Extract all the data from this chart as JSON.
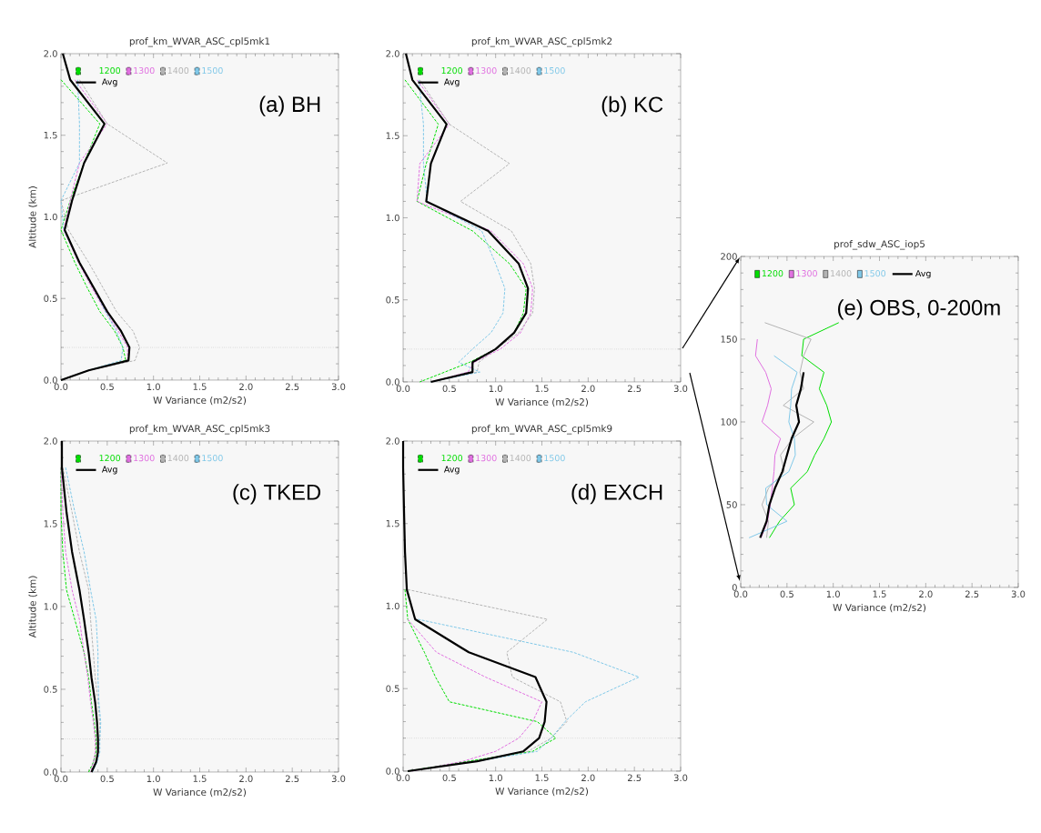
{
  "chart_data": [
    {
      "type": "line",
      "title": "prof_km_WVAR_ASC_cpl5mk1",
      "xlabel": "W Variance (m2/s2)",
      "ylabel": "Altitude (km)",
      "xlim": [
        0,
        3
      ],
      "ylim": [
        0,
        2
      ],
      "xticks": [
        {
          "value": 0,
          "label": "0.0"
        },
        {
          "value": 0.5,
          "label": "0.5"
        },
        {
          "value": 1,
          "label": "1.0"
        },
        {
          "value": 1.5,
          "label": "1.5"
        },
        {
          "value": 2,
          "label": "2.0"
        },
        {
          "value": 2.5,
          "label": "2.5"
        },
        {
          "value": 3,
          "label": "3.0"
        }
      ],
      "yticks": [
        {
          "value": 0,
          "label": "0.0"
        },
        {
          "value": 0.5,
          "label": "0.5"
        },
        {
          "value": 1,
          "label": "1.0"
        },
        {
          "value": 1.5,
          "label": "1.5"
        },
        {
          "value": 2,
          "label": "2.0"
        }
      ],
      "legend": "top left",
      "annotations": [
        "(a) BH"
      ],
      "ref_lines": [
        {
          "axis": "y",
          "value": 0.2,
          "line_style": "dotted"
        }
      ],
      "series": [
        {
          "name": "1200",
          "color": "#00dd00",
          "line_style": "dashed",
          "x": [
            0,
            0.3,
            0.7,
            0.67,
            0.58,
            0.42,
            0.28,
            0.15,
            0.0,
            0.1,
            0.25,
            0.42,
            0.0
          ],
          "values": [
            0,
            0.06,
            0.12,
            0.2,
            0.3,
            0.42,
            0.57,
            0.72,
            0.92,
            1.1,
            1.33,
            1.57,
            1.84
          ]
        },
        {
          "name": "1300",
          "color": "#e070e0",
          "line_style": "dashed",
          "x": [
            0,
            0.3,
            0.72,
            0.72,
            0.62,
            0.48,
            0.33,
            0.19,
            0.03,
            0.1,
            0.2,
            0.5,
            0.15
          ],
          "values": [
            0,
            0.06,
            0.12,
            0.2,
            0.3,
            0.42,
            0.57,
            0.72,
            0.92,
            1.1,
            1.33,
            1.57,
            1.84
          ]
        },
        {
          "name": "1400",
          "color": "#b4b4b4",
          "line_style": "dashed",
          "x": [
            0,
            0.3,
            0.8,
            0.85,
            0.78,
            0.6,
            0.45,
            0.3,
            0.08,
            0.0,
            1.15,
            0.5,
            0.2
          ],
          "values": [
            0,
            0.06,
            0.12,
            0.2,
            0.3,
            0.42,
            0.57,
            0.72,
            0.92,
            1.1,
            1.33,
            1.57,
            1.84
          ]
        },
        {
          "name": "1500",
          "color": "#80c8e8",
          "line_style": "dashed",
          "x": [
            0,
            0.3,
            0.65,
            0.67,
            0.6,
            0.48,
            0.35,
            0.2,
            0.03,
            0.0,
            0.2,
            0.2,
            0.18
          ],
          "values": [
            0,
            0.06,
            0.12,
            0.2,
            0.3,
            0.42,
            0.57,
            0.72,
            0.92,
            1.1,
            1.33,
            1.57,
            1.84
          ]
        },
        {
          "name": "Avg",
          "color": "#000000",
          "line_style": "solid",
          "x": [
            0,
            0.3,
            0.73,
            0.74,
            0.65,
            0.5,
            0.35,
            0.2,
            0.04,
            0.12,
            0.25,
            0.47,
            0.1,
            0.02
          ],
          "values": [
            0,
            0.06,
            0.12,
            0.2,
            0.3,
            0.42,
            0.57,
            0.72,
            0.92,
            1.1,
            1.33,
            1.57,
            1.84,
            2.0
          ]
        }
      ]
    },
    {
      "type": "line",
      "title": "prof_km_WVAR_ASC_cpl5mk2",
      "xlabel": "W Variance (m2/s2)",
      "xlim": [
        0,
        3
      ],
      "ylim": [
        0,
        2
      ],
      "xticks": [
        {
          "value": 0,
          "label": "0.0"
        },
        {
          "value": 0.5,
          "label": "0.5"
        },
        {
          "value": 1,
          "label": "1.0"
        },
        {
          "value": 1.5,
          "label": "1.5"
        },
        {
          "value": 2,
          "label": "2.0"
        },
        {
          "value": 2.5,
          "label": "2.5"
        },
        {
          "value": 3,
          "label": "3.0"
        }
      ],
      "yticks": [
        {
          "value": 0,
          "label": "0.0"
        },
        {
          "value": 0.5,
          "label": "0.5"
        },
        {
          "value": 1,
          "label": "1.0"
        },
        {
          "value": 1.5,
          "label": "1.5"
        },
        {
          "value": 2,
          "label": "2.0"
        }
      ],
      "legend": "top left",
      "annotations": [
        "(b) KC"
      ],
      "ref_lines": [
        {
          "axis": "y",
          "value": 0.2,
          "line_style": "dotted"
        }
      ],
      "series": [
        {
          "name": "1200",
          "color": "#00dd00",
          "line_style": "dashed",
          "x": [
            0.18,
            0.45,
            0.72,
            1.0,
            1.2,
            1.3,
            1.33,
            1.15,
            0.75,
            0.15,
            0.25,
            0.38,
            0.02
          ],
          "values": [
            0,
            0.06,
            0.12,
            0.2,
            0.3,
            0.42,
            0.57,
            0.72,
            0.92,
            1.1,
            1.33,
            1.57,
            1.84
          ]
        },
        {
          "name": "1300",
          "color": "#e070e0",
          "line_style": "dashed",
          "x": [
            0.3,
            0.7,
            0.77,
            1.05,
            1.27,
            1.38,
            1.4,
            1.3,
            0.95,
            0.15,
            0.18,
            0.5,
            0.15
          ],
          "values": [
            0,
            0.06,
            0.12,
            0.2,
            0.3,
            0.42,
            0.57,
            0.72,
            0.92,
            1.1,
            1.33,
            1.57,
            1.84
          ]
        },
        {
          "name": "1400",
          "color": "#b4b4b4",
          "line_style": "dashed",
          "x": [
            0.3,
            0.8,
            0.82,
            1.0,
            1.25,
            1.4,
            1.42,
            1.38,
            1.17,
            0.62,
            1.15,
            0.5,
            0.18
          ],
          "values": [
            0,
            0.06,
            0.12,
            0.2,
            0.3,
            0.42,
            0.57,
            0.72,
            0.92,
            1.1,
            1.33,
            1.57,
            1.84
          ]
        },
        {
          "name": "1500",
          "color": "#80c8e8",
          "line_style": "dashed",
          "x": [
            0.3,
            0.83,
            0.6,
            0.75,
            0.95,
            1.08,
            1.1,
            1.0,
            0.85,
            0.26,
            0.22,
            0.22,
            0.17
          ],
          "values": [
            0,
            0.06,
            0.12,
            0.2,
            0.3,
            0.42,
            0.57,
            0.72,
            0.92,
            1.1,
            1.33,
            1.57,
            1.84
          ]
        },
        {
          "name": "Avg",
          "color": "#000000",
          "line_style": "solid",
          "x": [
            0.3,
            0.75,
            0.75,
            1.0,
            1.2,
            1.33,
            1.35,
            1.25,
            0.92,
            0.25,
            0.3,
            0.47,
            0.1,
            0.03
          ],
          "values": [
            0,
            0.06,
            0.12,
            0.2,
            0.3,
            0.42,
            0.57,
            0.72,
            0.92,
            1.1,
            1.33,
            1.57,
            1.84,
            2.0
          ]
        }
      ]
    },
    {
      "type": "line",
      "title": "prof_km_WVAR_ASC_cpl5mk3",
      "xlabel": "W Variance (m2/s2)",
      "ylabel": "Altitude (km)",
      "xlim": [
        0,
        3
      ],
      "ylim": [
        0,
        2
      ],
      "xticks": [
        {
          "value": 0,
          "label": "0.0"
        },
        {
          "value": 0.5,
          "label": "0.5"
        },
        {
          "value": 1,
          "label": "1.0"
        },
        {
          "value": 1.5,
          "label": "1.5"
        },
        {
          "value": 2,
          "label": "2.0"
        },
        {
          "value": 2.5,
          "label": "2.5"
        },
        {
          "value": 3,
          "label": "3.0"
        }
      ],
      "yticks": [
        {
          "value": 0,
          "label": "0.0"
        },
        {
          "value": 0.5,
          "label": "0.5"
        },
        {
          "value": 1,
          "label": "1.0"
        },
        {
          "value": 1.5,
          "label": "1.5"
        },
        {
          "value": 2,
          "label": "2.0"
        }
      ],
      "legend": "top left",
      "annotations": [
        "(c) TKED"
      ],
      "ref_lines": [
        {
          "axis": "y",
          "value": 0.2,
          "line_style": "dotted"
        }
      ],
      "series": [
        {
          "name": "1200",
          "color": "#00dd00",
          "line_style": "dashed",
          "x": [
            0.3,
            0.35,
            0.38,
            0.38,
            0.36,
            0.33,
            0.3,
            0.25,
            0.15,
            0.06,
            0.02,
            0.0,
            0.0
          ],
          "values": [
            0,
            0.06,
            0.12,
            0.2,
            0.3,
            0.42,
            0.57,
            0.72,
            0.92,
            1.1,
            1.33,
            1.57,
            1.84
          ]
        },
        {
          "name": "1300",
          "color": "#e070e0",
          "line_style": "dashed",
          "x": [
            0.32,
            0.35,
            0.37,
            0.37,
            0.35,
            0.32,
            0.29,
            0.25,
            0.2,
            0.12,
            0.05,
            0.02,
            0.0
          ],
          "values": [
            0,
            0.06,
            0.12,
            0.2,
            0.3,
            0.42,
            0.57,
            0.72,
            0.92,
            1.1,
            1.33,
            1.57,
            1.84
          ]
        },
        {
          "name": "1400",
          "color": "#b4b4b4",
          "line_style": "dashed",
          "x": [
            0.33,
            0.38,
            0.4,
            0.42,
            0.42,
            0.4,
            0.37,
            0.35,
            0.32,
            0.3,
            0.2,
            0.12,
            0.02
          ],
          "values": [
            0,
            0.06,
            0.12,
            0.2,
            0.3,
            0.42,
            0.57,
            0.72,
            0.92,
            1.1,
            1.33,
            1.57,
            1.84
          ]
        },
        {
          "name": "1500",
          "color": "#80c8e8",
          "line_style": "dashed",
          "x": [
            0.34,
            0.39,
            0.42,
            0.42,
            0.43,
            0.41,
            0.4,
            0.4,
            0.38,
            0.32,
            0.25,
            0.15,
            0.05
          ],
          "values": [
            0,
            0.06,
            0.12,
            0.2,
            0.3,
            0.42,
            0.57,
            0.72,
            0.92,
            1.1,
            1.33,
            1.57,
            1.84
          ]
        },
        {
          "name": "Avg",
          "color": "#000000",
          "line_style": "solid",
          "x": [
            0.33,
            0.38,
            0.4,
            0.4,
            0.39,
            0.37,
            0.33,
            0.3,
            0.25,
            0.2,
            0.12,
            0.06,
            0.01,
            0.01
          ],
          "values": [
            0,
            0.06,
            0.12,
            0.2,
            0.3,
            0.42,
            0.57,
            0.72,
            0.92,
            1.1,
            1.33,
            1.57,
            1.84,
            2.0
          ]
        }
      ]
    },
    {
      "type": "line",
      "title": "prof_km_WVAR_ASC_cpl5mk9",
      "xlabel": "W Variance (m2/s2)",
      "xlim": [
        0,
        3
      ],
      "ylim": [
        0,
        2
      ],
      "xticks": [
        {
          "value": 0,
          "label": "0.0"
        },
        {
          "value": 0.5,
          "label": "0.5"
        },
        {
          "value": 1,
          "label": "1.0"
        },
        {
          "value": 1.5,
          "label": "1.5"
        },
        {
          "value": 2,
          "label": "2.0"
        },
        {
          "value": 2.5,
          "label": "2.5"
        },
        {
          "value": 3,
          "label": "3.0"
        }
      ],
      "yticks": [
        {
          "value": 0,
          "label": "0.0"
        },
        {
          "value": 0.5,
          "label": "0.5"
        },
        {
          "value": 1,
          "label": "1.0"
        },
        {
          "value": 1.5,
          "label": "1.5"
        },
        {
          "value": 2,
          "label": "2.0"
        }
      ],
      "legend": "top left",
      "annotations": [
        "(d) EXCH"
      ],
      "ref_lines": [
        {
          "axis": "y",
          "value": 0.2,
          "line_style": "dotted"
        }
      ],
      "series": [
        {
          "name": "1200",
          "color": "#00dd00",
          "line_style": "dashed",
          "x": [
            0.05,
            0.7,
            1.4,
            1.65,
            1.45,
            0.5,
            0.35,
            0.23,
            0.05,
            0.02
          ],
          "values": [
            0,
            0.06,
            0.12,
            0.2,
            0.3,
            0.42,
            0.57,
            0.72,
            0.92,
            1.1
          ]
        },
        {
          "name": "1300",
          "color": "#e070e0",
          "line_style": "dashed",
          "x": [
            0.1,
            0.65,
            1.0,
            1.25,
            1.4,
            1.5,
            0.89,
            0.36,
            0.05
          ],
          "values": [
            0,
            0.06,
            0.12,
            0.2,
            0.3,
            0.42,
            0.57,
            0.72,
            0.92
          ]
        },
        {
          "name": "1400",
          "color": "#b4b4b4",
          "line_style": "dashed",
          "x": [
            0.05,
            0.8,
            1.35,
            1.6,
            1.77,
            1.7,
            1.18,
            1.12,
            1.56,
            0.05
          ],
          "values": [
            0,
            0.06,
            0.12,
            0.2,
            0.3,
            0.42,
            0.57,
            0.72,
            0.92,
            1.1
          ]
        },
        {
          "name": "1500",
          "color": "#80c8e8",
          "line_style": "dashed",
          "x": [
            0.05,
            0.8,
            1.45,
            1.6,
            1.75,
            1.97,
            2.55,
            1.84,
            0.16
          ],
          "values": [
            0,
            0.06,
            0.12,
            0.2,
            0.3,
            0.42,
            0.57,
            0.72,
            0.92
          ]
        },
        {
          "name": "Avg",
          "color": "#000000",
          "line_style": "solid",
          "x": [
            0.05,
            0.8,
            1.3,
            1.47,
            1.53,
            1.55,
            1.43,
            0.71,
            0.13,
            0.04,
            0.02,
            0.01,
            0.0,
            0.0
          ],
          "values": [
            0,
            0.06,
            0.12,
            0.2,
            0.3,
            0.42,
            0.57,
            0.72,
            0.92,
            1.1,
            1.33,
            1.57,
            1.84,
            2.0
          ]
        }
      ]
    },
    {
      "type": "line",
      "title": "prof_sdw_ASC_iop5",
      "xlabel": "W Variance (m2/s2)",
      "xlim": [
        0,
        3
      ],
      "ylim": [
        0,
        200
      ],
      "xticks": [
        {
          "value": 0,
          "label": "0.0"
        },
        {
          "value": 0.5,
          "label": "0.5"
        },
        {
          "value": 1,
          "label": "1.0"
        },
        {
          "value": 1.5,
          "label": "1.5"
        },
        {
          "value": 2,
          "label": "2.0"
        },
        {
          "value": 2.5,
          "label": "2.5"
        },
        {
          "value": 3,
          "label": "3.0"
        }
      ],
      "yticks": [
        0,
        50,
        100,
        150,
        200
      ],
      "legend": "top left",
      "annotations": [
        "(e) OBS, 0-200m"
      ],
      "series": [
        {
          "name": "1200",
          "color": "#00dd00",
          "line_style": "solid",
          "x": [
            0.31,
            0.42,
            0.58,
            0.54,
            0.72,
            0.8,
            0.9,
            0.98,
            0.93,
            0.85,
            0.9,
            0.66,
            0.68,
            1.06
          ],
          "values": [
            30,
            40,
            50,
            60,
            70,
            80,
            90,
            100,
            110,
            120,
            130,
            140,
            150,
            160
          ]
        },
        {
          "name": "1300",
          "color": "#e070e0",
          "line_style": "solid",
          "x": [
            0.22,
            0.29,
            0.32,
            0.34,
            0.36,
            0.37,
            0.43,
            0.23,
            0.29,
            0.33,
            0.27,
            0.16,
            0.18
          ],
          "values": [
            30,
            40,
            50,
            60,
            70,
            80,
            90,
            100,
            110,
            120,
            130,
            140,
            150
          ]
        },
        {
          "name": "1400",
          "color": "#b4b4b4",
          "line_style": "solid",
          "x": [
            0.28,
            0.3,
            0.23,
            0.3,
            0.47,
            0.43,
            0.56,
            0.79,
            0.46,
            0.68,
            0.64,
            0.68,
            0.76,
            0.26
          ],
          "values": [
            30,
            40,
            50,
            60,
            70,
            80,
            90,
            100,
            110,
            120,
            130,
            140,
            150,
            160
          ]
        },
        {
          "name": "1500",
          "color": "#80c8e8",
          "line_style": "solid",
          "x": [
            0.09,
            0.5,
            0.28,
            0.27,
            0.52,
            0.59,
            0.58,
            0.52,
            0.54,
            0.55,
            0.61,
            0.36
          ],
          "values": [
            30,
            40,
            50,
            60,
            70,
            80,
            90,
            100,
            110,
            120,
            130,
            140
          ]
        },
        {
          "name": "Avg",
          "color": "#000000",
          "line_style": "solid",
          "x": [
            0.21,
            0.28,
            0.31,
            0.37,
            0.45,
            0.5,
            0.55,
            0.63,
            0.6,
            0.65,
            0.68
          ],
          "values": [
            30,
            40,
            50,
            60,
            70,
            80,
            90,
            100,
            110,
            120,
            130
          ]
        }
      ]
    }
  ]
}
